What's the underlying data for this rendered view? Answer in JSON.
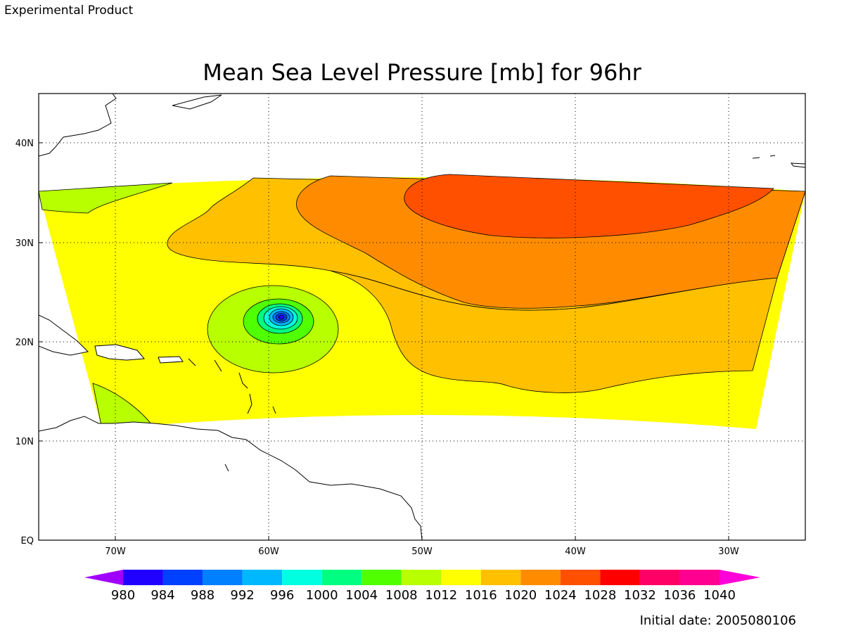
{
  "header": {
    "experimental_label": "Experimental Product",
    "experimental_color": "#e0403a"
  },
  "title": "Mean Sea Level Pressure [mb] for 96hr",
  "axes": {
    "lon_ticks": [
      "70W",
      "60W",
      "50W",
      "40W",
      "30W"
    ],
    "lat_ticks": [
      "40N",
      "30N",
      "20N",
      "10N",
      "EQ"
    ],
    "lon_range": [
      -75,
      -25
    ],
    "lat_range": [
      0,
      45
    ],
    "grid": "dotted"
  },
  "colorbar": {
    "levels": [
      "980",
      "984",
      "988",
      "992",
      "996",
      "1000",
      "1004",
      "1008",
      "1012",
      "1016",
      "1020",
      "1024",
      "1028",
      "1032",
      "1036",
      "1040"
    ],
    "colors": [
      "#a000ff",
      "#2000ff",
      "#0040ff",
      "#0080ff",
      "#00b8ff",
      "#00ffe0",
      "#00ff80",
      "#50ff00",
      "#b8ff00",
      "#ffff00",
      "#ffc000",
      "#ff8c00",
      "#ff5000",
      "#ff0000",
      "#ff0066",
      "#ff0090",
      "#ff00d8"
    ]
  },
  "footer": {
    "initial_date": "Initial date: 2005080106"
  }
}
